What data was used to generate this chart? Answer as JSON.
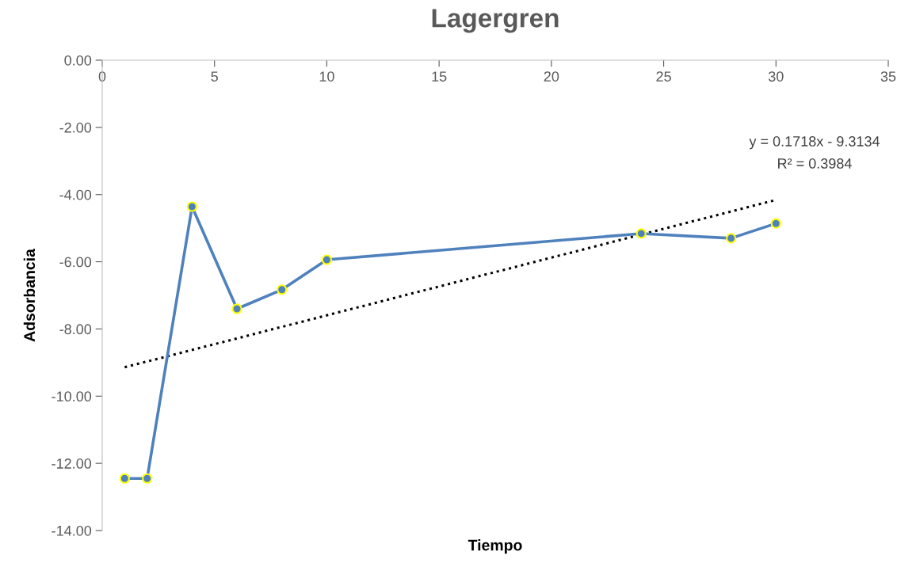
{
  "chart_data": {
    "type": "line",
    "title": "Lagergren",
    "xlabel": "Tiempo",
    "ylabel": "Adsorbancia",
    "series": [
      {
        "color": "#4f81bd",
        "marker": "circle",
        "line_style": "solid",
        "x": [
          1,
          2,
          4,
          6,
          8,
          10,
          24,
          28,
          30
        ],
        "values": [
          -12.45,
          -12.45,
          -4.36,
          -7.4,
          -6.83,
          -5.94,
          -5.16,
          -5.3,
          -4.86
        ]
      },
      {
        "type": "line",
        "color": "#000000",
        "marker": "none",
        "line_style": "dotted",
        "x": [
          1,
          30
        ],
        "values": [
          -9.14,
          -4.16
        ]
      }
    ],
    "annotations": [
      "y = 0.1718x - 9.3134",
      "R² = 0.3984"
    ],
    "xlim": [
      0,
      35
    ],
    "xticks": [
      0,
      5,
      10,
      15,
      20,
      25,
      30,
      35
    ],
    "ylim": [
      -14,
      0
    ],
    "yticks": [
      {
        "value": 0,
        "label": "0.00"
      },
      {
        "value": -2,
        "label": "-2.00"
      },
      {
        "value": -4,
        "label": "-4.00"
      },
      {
        "value": -6,
        "label": "-6.00"
      },
      {
        "value": -8,
        "label": "-8.00"
      },
      {
        "value": -10,
        "label": "-10.00"
      },
      {
        "value": -12,
        "label": "-12.00"
      },
      {
        "value": -14,
        "label": "-14.00"
      }
    ],
    "grid": false,
    "legend": false
  }
}
